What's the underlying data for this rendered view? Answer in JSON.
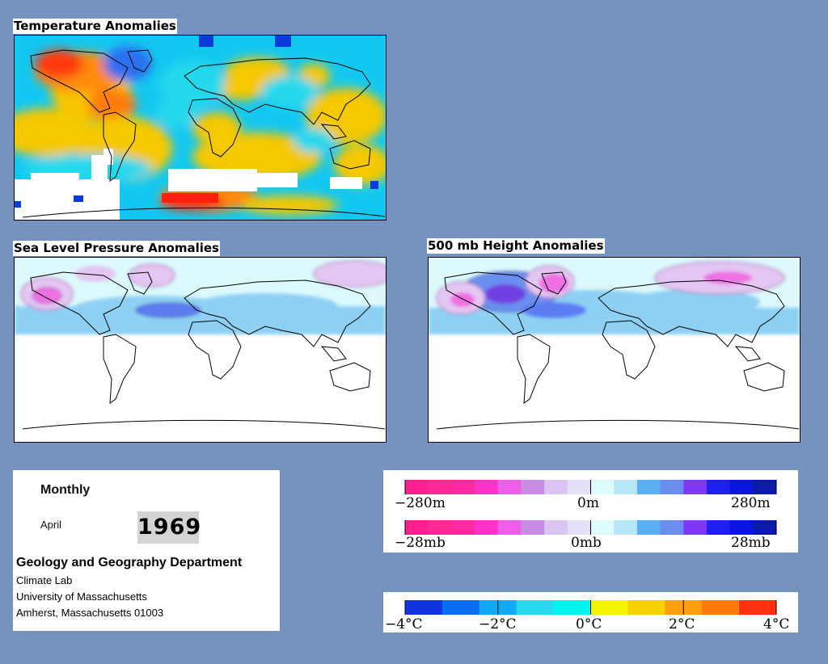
{
  "panels": {
    "temperature": {
      "title": "Temperature Anomalies"
    },
    "slp": {
      "title": "Sea Level Pressure Anomalies"
    },
    "height": {
      "title": "500 mb Height Anomalies"
    }
  },
  "info": {
    "period": "Monthly",
    "month": "April",
    "year": "1969",
    "department": "Geology and Geography Department",
    "lab": "Climate Lab",
    "university": "University of Massachusetts",
    "address": "Amherst, Massachusetts 01003"
  },
  "legends": {
    "height": {
      "labels": [
        "−280m",
        "0m",
        "280m"
      ]
    },
    "pressure": {
      "labels": [
        "−28mb",
        "0mb",
        "28mb"
      ]
    },
    "temperature": {
      "labels": [
        "−4°C",
        "−2°C",
        "0°C",
        "2°C",
        "4°C"
      ]
    }
  },
  "colors": {
    "background": "#7593bf",
    "pressure_scale": [
      "#ff1f8f",
      "#ff2a96",
      "#ff2aa2",
      "#ff33c8",
      "#ee5fe8",
      "#c98de6",
      "#dcc4f2",
      "#e4e0f8",
      "#ddfbfb",
      "#b8e8f8",
      "#5ab0f2",
      "#6a8ef0",
      "#7f39f5",
      "#1f1ff2",
      "#0a16e0",
      "#0b1aa8"
    ],
    "temperature_scale": [
      "#1034e0",
      "#0a6ef4",
      "#13a8f3",
      "#28d8ec",
      "#00f5f0",
      "#f5f500",
      "#f7d000",
      "#ff9f10",
      "#ff7a0a",
      "#ff3010"
    ],
    "land_outline": "#000000"
  }
}
